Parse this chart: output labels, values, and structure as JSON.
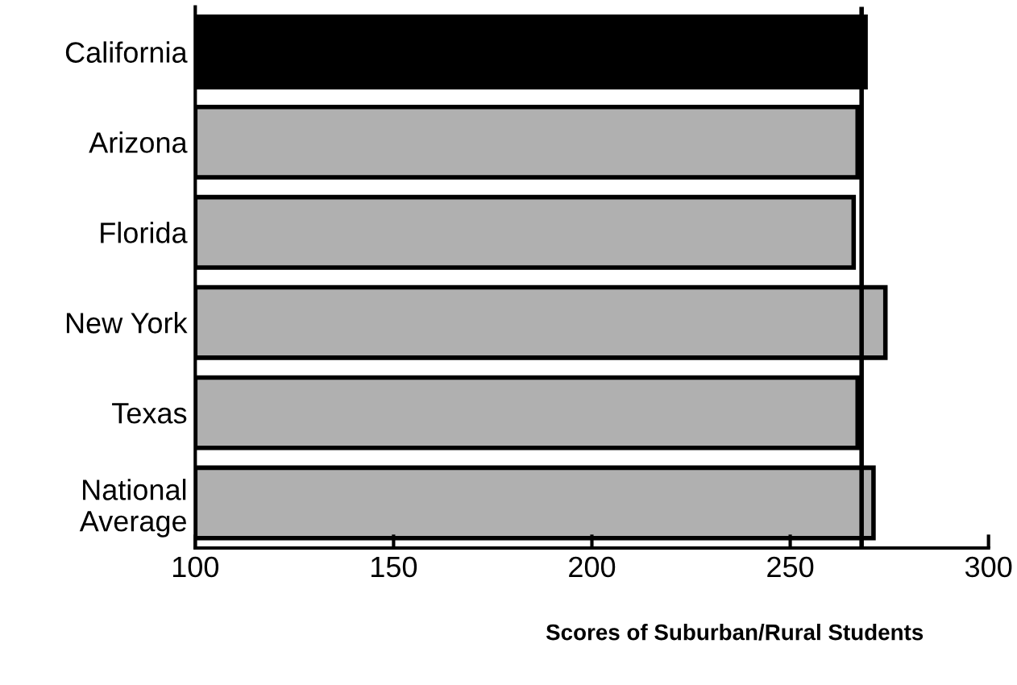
{
  "chart_data": {
    "type": "bar",
    "orientation": "horizontal",
    "xlabel": "Scores of Suburban/Rural Students",
    "categories": [
      "California",
      "Arizona",
      "Florida",
      "New York",
      "Texas",
      "National\nAverage"
    ],
    "values": [
      269,
      267,
      266,
      274,
      267,
      271
    ],
    "colors": [
      "#000000",
      "#b0b0b0",
      "#b0b0b0",
      "#b0b0b0",
      "#b0b0b0",
      "#b0b0b0"
    ],
    "xlim": [
      100,
      300
    ],
    "xticks": [
      100,
      150,
      200,
      250,
      300
    ],
    "ref_lines": [
      {
        "axis": "x",
        "value": 268,
        "color": "#000000"
      }
    ],
    "grid": false
  }
}
